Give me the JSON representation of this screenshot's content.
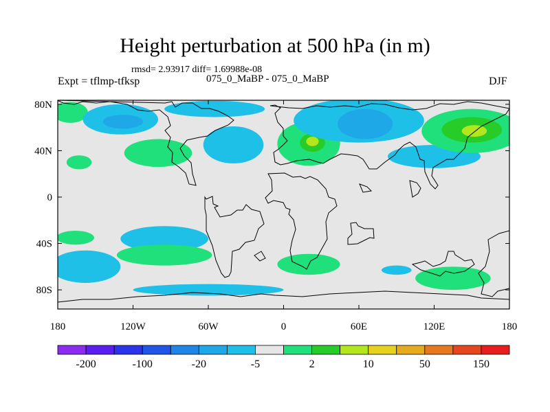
{
  "figure": {
    "title": "Height perturbation at 500 hPa (in m)",
    "stats": "rmsd= 2.93917 diff= 1.69988e-08",
    "left_label": "Expt = tflmp-tfksp",
    "center_label": "075_0_MaBP - 075_0_MaBP",
    "right_label": "DJF"
  },
  "chart_data": {
    "type": "filled-contour-map",
    "title": "Height perturbation at 500 hPa (in m)",
    "xlabel": "",
    "ylabel": "",
    "xlim": [
      -180,
      180
    ],
    "ylim": [
      -90,
      90
    ],
    "x_ticks": [
      {
        "value": -180,
        "label": "180"
      },
      {
        "value": -120,
        "label": "120W"
      },
      {
        "value": -60,
        "label": "60W"
      },
      {
        "value": 0,
        "label": "0"
      },
      {
        "value": 60,
        "label": "60E"
      },
      {
        "value": 120,
        "label": "120E"
      },
      {
        "value": 180,
        "label": "180"
      }
    ],
    "y_ticks": [
      {
        "value": 80,
        "label": "80N"
      },
      {
        "value": 40,
        "label": "40N"
      },
      {
        "value": 0,
        "label": "0"
      },
      {
        "value": -40,
        "label": "40S"
      },
      {
        "value": -80,
        "label": "80S"
      }
    ],
    "colorbar": {
      "colors": [
        "#8c2cf0",
        "#5b1ef0",
        "#2b34e8",
        "#1f56e8",
        "#1f86e8",
        "#1fa8e8",
        "#1fc0e8",
        "#e6e6e6",
        "#1fe07a",
        "#28cc28",
        "#b4e61e",
        "#e6d21e",
        "#e6aa1e",
        "#e6781e",
        "#e6461e",
        "#e61e1e"
      ],
      "labels": [
        {
          "boundary": 1,
          "text": "-200"
        },
        {
          "boundary": 3,
          "text": "-100"
        },
        {
          "boundary": 5,
          "text": "-20"
        },
        {
          "boundary": 7,
          "text": "-5"
        },
        {
          "boundary": 9,
          "text": "2"
        },
        {
          "boundary": 11,
          "text": "10"
        },
        {
          "boundary": 13,
          "text": "50"
        },
        {
          "boundary": 15,
          "text": "150"
        }
      ]
    },
    "regions": [
      {
        "name": "green-top-left-edge",
        "level": "+2..10",
        "lon": -170,
        "lat": 73,
        "rlon": 14,
        "rlat": 9
      },
      {
        "name": "cyan-west-n-pacific",
        "level": "-2..-5",
        "lon": -130,
        "lat": 67,
        "rlon": 30,
        "rlat": 13
      },
      {
        "name": "blue-west-n-pacific-core",
        "level": "-5..-20",
        "lon": -128,
        "lat": 65,
        "rlon": 16,
        "rlat": 6
      },
      {
        "name": "green-na-canada",
        "level": "+2..10",
        "lon": -100,
        "lat": 38,
        "rlon": 27,
        "rlat": 12
      },
      {
        "name": "green-w-pacific-small",
        "level": "+2..10",
        "lon": -163,
        "lat": 30,
        "rlon": 10,
        "rlat": 6
      },
      {
        "name": "cyan-north-atlantic",
        "level": "-2..-5",
        "lon": -40,
        "lat": 45,
        "rlon": 24,
        "rlat": 16
      },
      {
        "name": "cyan-arctic-north-america",
        "level": "-2..-5",
        "lon": -55,
        "lat": 76,
        "rlon": 40,
        "rlat": 7
      },
      {
        "name": "green-europe",
        "level": "+2..10",
        "lon": 20,
        "lat": 46,
        "rlon": 25,
        "rlat": 19
      },
      {
        "name": "bright-green-europe-core",
        "level": "+10..20",
        "lon": 23,
        "lat": 47,
        "rlon": 10,
        "rlat": 8
      },
      {
        "name": "lime-europe-center",
        "level": "+20..50",
        "lon": 23,
        "lat": 48,
        "rlon": 5,
        "rlat": 4
      },
      {
        "name": "cyan-arctic-siberia",
        "level": "-2..-5",
        "lon": 60,
        "lat": 66,
        "rlon": 52,
        "rlat": 19
      },
      {
        "name": "blue-siberia-core",
        "level": "-5..-20",
        "lon": 65,
        "lat": 63,
        "rlon": 22,
        "rlat": 13
      },
      {
        "name": "cyan-east-asia",
        "level": "-2..-5",
        "lon": 120,
        "lat": 35,
        "rlon": 37,
        "rlat": 10
      },
      {
        "name": "green-north-pacific",
        "level": "+2..10",
        "lon": 150,
        "lat": 57,
        "rlon": 40,
        "rlat": 19
      },
      {
        "name": "bright-green-north-pacific",
        "level": "+10..20",
        "lon": 150,
        "lat": 58,
        "rlon": 24,
        "rlat": 11
      },
      {
        "name": "lime-north-pacific",
        "level": "+20..50",
        "lon": 152,
        "lat": 57,
        "rlon": 10,
        "rlat": 5
      },
      {
        "name": "cyan-south-pacific",
        "level": "-2..-5",
        "lon": -95,
        "lat": -36,
        "rlon": 35,
        "rlat": 11
      },
      {
        "name": "green-south-pacific",
        "level": "+2..10",
        "lon": -95,
        "lat": -50,
        "rlon": 38,
        "rlat": 9
      },
      {
        "name": "cyan-south-atlantic-edge",
        "level": "-2..-5",
        "lon": -158,
        "lat": -60,
        "rlon": 28,
        "rlat": 14
      },
      {
        "name": "green-top-left-south",
        "level": "+2..10",
        "lon": -166,
        "lat": -35,
        "rlon": 15,
        "rlat": 6
      },
      {
        "name": "green-south-indian",
        "level": "+2..10",
        "lon": 20,
        "lat": -58,
        "rlon": 25,
        "rlat": 9
      },
      {
        "name": "cyan-southern-ocean",
        "level": "-2..-5",
        "lon": 90,
        "lat": -63,
        "rlon": 12,
        "rlat": 4
      },
      {
        "name": "green-south-pacific-east",
        "level": "+2..10",
        "lon": 135,
        "lat": -70,
        "rlon": 30,
        "rlat": 10
      },
      {
        "name": "cyan-antarctic",
        "level": "-2..-5",
        "lon": -60,
        "lat": -80,
        "rlon": 60,
        "rlat": 5
      }
    ]
  }
}
